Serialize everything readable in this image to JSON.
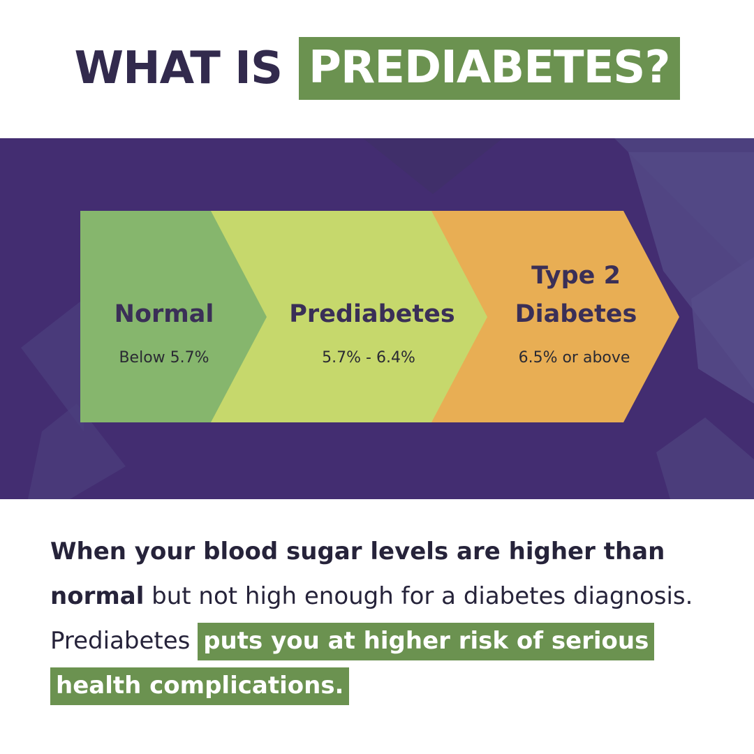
{
  "title": {
    "plain": "WHAT IS",
    "highlight": "PREDIABETES?"
  },
  "stages": [
    {
      "name": "Normal",
      "range": "Below 5.7%",
      "color": "#86b66d"
    },
    {
      "name": "Prediabetes",
      "range": "5.7% - 6.4%",
      "color": "#c6d86c"
    },
    {
      "name": "Type 2 Diabetes",
      "name_line1": "Type 2",
      "name_line2": "Diabetes",
      "range": "6.5% or above",
      "color": "#e8ae54"
    }
  ],
  "description": {
    "bold_lead": "When your blood sugar levels are higher than normal",
    "regular": " but not high enough for a diabetes diagnosis. Prediabetes ",
    "highlight": "puts you at higher risk of serious health complications."
  },
  "colors": {
    "accent_green": "#6b9250",
    "band_purple": "#432d71",
    "title_text": "#322a4d"
  }
}
